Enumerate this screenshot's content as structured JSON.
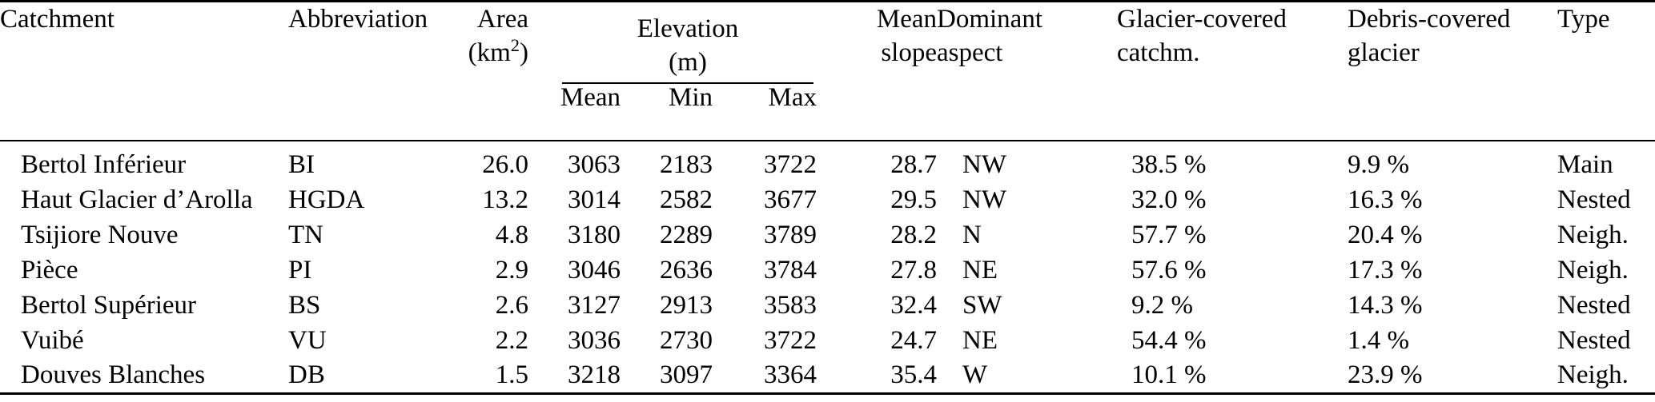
{
  "table": {
    "header": {
      "catchment": "Catchment",
      "abbreviation": "Abbreviation",
      "area": "Area",
      "area_unit_prefix": "(km",
      "area_unit_sup": "2",
      "area_unit_suffix": ")",
      "elevation": "Elevation",
      "elevation_unit": "(m)",
      "elev_sub_mean": "Mean",
      "elev_sub_min": "Min",
      "elev_sub_max": "Max",
      "mean_slope_line1": "Mean",
      "mean_slope_line2": "slope",
      "dominant_aspect_line1": "Dominant",
      "dominant_aspect_line2": "aspect",
      "glacier_covered_line1": "Glacier-covered",
      "glacier_covered_line2": "catchm.",
      "debris_covered_line1": "Debris-covered",
      "debris_covered_line2": "glacier",
      "type": "Type"
    },
    "rows": [
      {
        "catchment": "Bertol Inférieur",
        "abbr": "BI",
        "area": "26.0",
        "elev_mean": "3063",
        "elev_min": "2183",
        "elev_max": "3722",
        "slope": "28.7",
        "aspect": "NW",
        "glacier": "38.5 %",
        "debris": "9.9 %",
        "type": "Main"
      },
      {
        "catchment": "Haut Glacier d’Arolla",
        "abbr": "HGDA",
        "area": "13.2",
        "elev_mean": "3014",
        "elev_min": "2582",
        "elev_max": "3677",
        "slope": "29.5",
        "aspect": "NW",
        "glacier": "32.0 %",
        "debris": "16.3 %",
        "type": "Nested"
      },
      {
        "catchment": "Tsijiore Nouve",
        "abbr": "TN",
        "area": "4.8",
        "elev_mean": "3180",
        "elev_min": "2289",
        "elev_max": "3789",
        "slope": "28.2",
        "aspect": "N",
        "glacier": "57.7 %",
        "debris": "20.4 %",
        "type": "Neigh."
      },
      {
        "catchment": "Pièce",
        "abbr": "PI",
        "area": "2.9",
        "elev_mean": "3046",
        "elev_min": "2636",
        "elev_max": "3784",
        "slope": "27.8",
        "aspect": "NE",
        "glacier": "57.6 %",
        "debris": "17.3 %",
        "type": "Neigh."
      },
      {
        "catchment": "Bertol Supérieur",
        "abbr": "BS",
        "area": "2.6",
        "elev_mean": "3127",
        "elev_min": "2913",
        "elev_max": "3583",
        "slope": "32.4",
        "aspect": "SW",
        "glacier": "9.2 %",
        "debris": "14.3 %",
        "type": "Nested"
      },
      {
        "catchment": "Vuibé",
        "abbr": "VU",
        "area": "2.2",
        "elev_mean": "3036",
        "elev_min": "2730",
        "elev_max": "3722",
        "slope": "24.7",
        "aspect": "NE",
        "glacier": "54.4 %",
        "debris": "1.4 %",
        "type": "Nested"
      },
      {
        "catchment": "Douves Blanches",
        "abbr": "DB",
        "area": "1.5",
        "elev_mean": "3218",
        "elev_min": "3097",
        "elev_max": "3364",
        "slope": "35.4",
        "aspect": "W",
        "glacier": "10.1 %",
        "debris": "23.9 %",
        "type": "Neigh."
      }
    ]
  }
}
